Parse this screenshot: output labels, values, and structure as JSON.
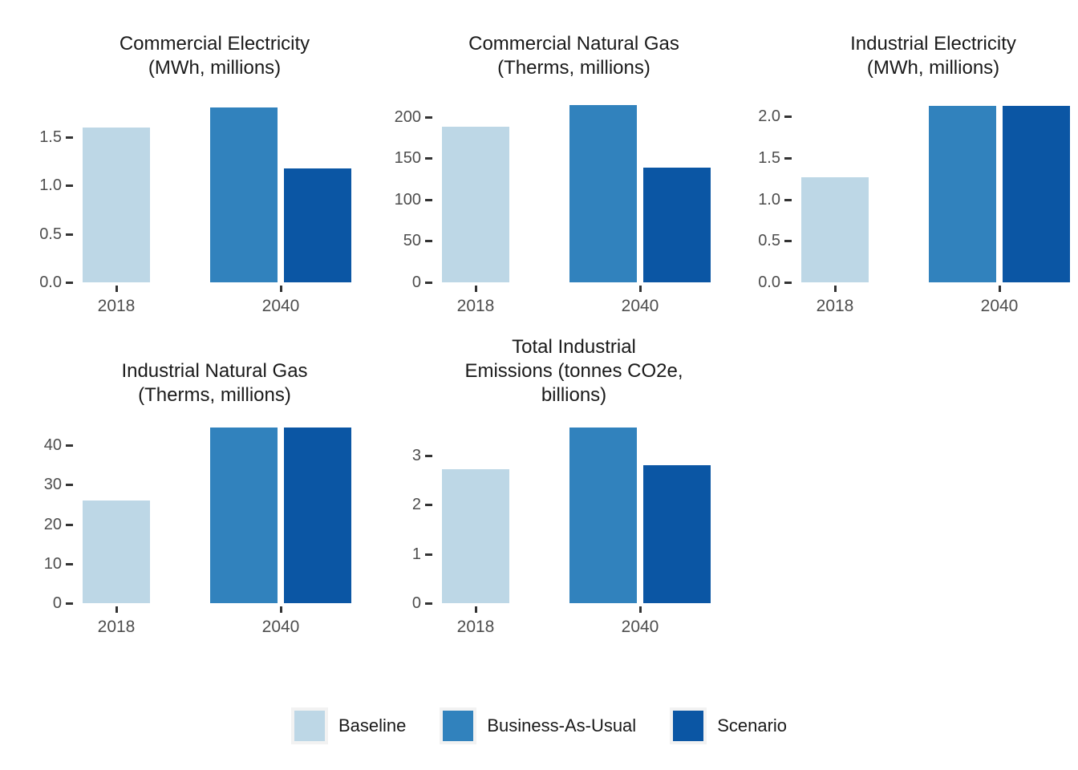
{
  "figure": {
    "background": "#ffffff",
    "axis_text_color": "#4d4d4d",
    "title_text_color": "#1a1a1a",
    "tick_mark_color": "#333333"
  },
  "legend": {
    "position": "bottom-center",
    "items": [
      {
        "label": "Baseline",
        "color": "#BDD7E6"
      },
      {
        "label": "Business-As-Usual",
        "color": "#3182BD"
      },
      {
        "label": "Scenario",
        "color": "#0B56A4"
      }
    ]
  },
  "chart_data": [
    {
      "type": "bar",
      "title": "Commercial Electricity (MWh, millions)",
      "title_lines": [
        "Commercial Electricity",
        "(MWh, millions)"
      ],
      "categories": [
        "2018",
        "2040"
      ],
      "series": [
        {
          "name": "Baseline",
          "category": "2018",
          "value": 1.6
        },
        {
          "name": "Business-As-Usual",
          "category": "2040",
          "value": 1.81
        },
        {
          "name": "Scenario",
          "category": "2040",
          "value": 1.18
        }
      ],
      "yticks": [
        0.0,
        0.5,
        1.0,
        1.5
      ],
      "ytick_labels": [
        "0.0",
        "0.5",
        "1.0",
        "1.5"
      ],
      "ylim": [
        0,
        1.84
      ],
      "grid": false
    },
    {
      "type": "bar",
      "title": "Commercial Natural Gas (Therms, millions)",
      "title_lines": [
        "Commercial Natural Gas",
        "(Therms, millions)"
      ],
      "categories": [
        "2018",
        "2040"
      ],
      "series": [
        {
          "name": "Baseline",
          "category": "2018",
          "value": 188
        },
        {
          "name": "Business-As-Usual",
          "category": "2040",
          "value": 215
        },
        {
          "name": "Scenario",
          "category": "2040",
          "value": 139
        }
      ],
      "yticks": [
        0,
        50,
        100,
        150,
        200
      ],
      "ytick_labels": [
        "0",
        "50",
        "100",
        "150",
        "200"
      ],
      "ylim": [
        0,
        215.5
      ],
      "grid": false
    },
    {
      "type": "bar",
      "title": "Industrial Electricity (MWh, millions)",
      "title_lines": [
        "Industrial Electricity",
        "(MWh, millions)"
      ],
      "categories": [
        "2018",
        "2040"
      ],
      "series": [
        {
          "name": "Baseline",
          "category": "2018",
          "value": 1.27
        },
        {
          "name": "Business-As-Usual",
          "category": "2040",
          "value": 2.13
        },
        {
          "name": "Scenario",
          "category": "2040",
          "value": 2.13
        }
      ],
      "yticks": [
        0.0,
        0.5,
        1.0,
        1.5,
        2.0
      ],
      "ytick_labels": [
        "0.0",
        "0.5",
        "1.0",
        "1.5",
        "2.0"
      ],
      "ylim": [
        0,
        2.15
      ],
      "grid": false
    },
    {
      "type": "bar",
      "title": "Industrial Natural Gas (Therms, millions)",
      "title_lines": [
        "Industrial Natural Gas",
        "(Therms, millions)"
      ],
      "categories": [
        "2018",
        "2040"
      ],
      "series": [
        {
          "name": "Baseline",
          "category": "2018",
          "value": 26
        },
        {
          "name": "Business-As-Usual",
          "category": "2040",
          "value": 44.5
        },
        {
          "name": "Scenario",
          "category": "2040",
          "value": 44.5
        }
      ],
      "yticks": [
        0,
        10,
        20,
        30,
        40
      ],
      "ytick_labels": [
        "0",
        "10",
        "20",
        "30",
        "40"
      ],
      "ylim": [
        0,
        45.1
      ],
      "grid": false
    },
    {
      "type": "bar",
      "title": "Total Industrial Emissions (tonnes CO2e, billions)",
      "title_lines": [
        "Total Industrial",
        "Emissions (tonnes CO2e,",
        "billions)"
      ],
      "categories": [
        "2018",
        "2040"
      ],
      "series": [
        {
          "name": "Baseline",
          "category": "2018",
          "value": 2.72
        },
        {
          "name": "Business-As-Usual",
          "category": "2040",
          "value": 3.57
        },
        {
          "name": "Scenario",
          "category": "2040",
          "value": 2.81
        }
      ],
      "yticks": [
        0,
        1,
        2,
        3
      ],
      "ytick_labels": [
        "0",
        "1",
        "2",
        "3"
      ],
      "ylim": [
        0,
        3.62
      ],
      "grid": false
    }
  ]
}
